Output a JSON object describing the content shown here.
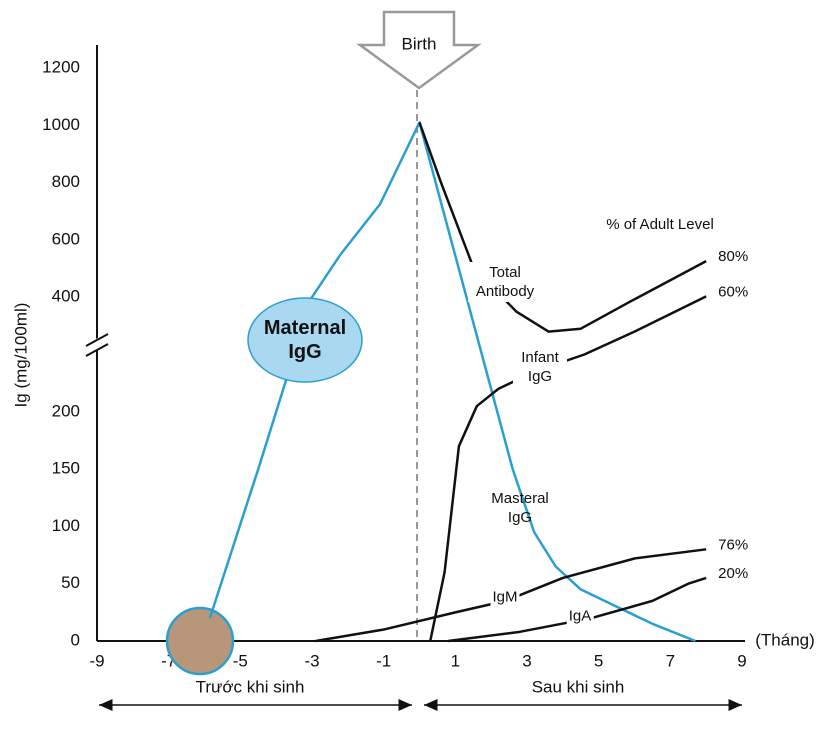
{
  "chart_data": {
    "type": "line",
    "ylabel": "Ig (mg/100ml)",
    "x_unit": "(Tháng)",
    "xlim": [
      -9,
      9
    ],
    "xticks": [
      -9,
      -7,
      -5,
      -3,
      -1,
      1,
      3,
      5,
      7,
      9
    ],
    "ylim": [
      0,
      1200
    ],
    "yticks": [
      0,
      50,
      100,
      150,
      200,
      400,
      600,
      800,
      1000,
      1200
    ],
    "event": "Birth",
    "periods": [
      "Trước khi sinh",
      "Sau khi sinh"
    ],
    "adult_level_title": "% of Adult Level",
    "series": [
      {
        "name": "Maternal IgG",
        "color": "#2a9fd0",
        "x": [
          -5.85,
          -4.5,
          -3,
          -2.2,
          -1.1,
          0,
          2.6,
          3.2,
          3.8,
          4.5,
          5.5,
          6.5,
          7.7
        ],
        "values": [
          20,
          150,
          400,
          550,
          725,
          1010,
          150,
          95,
          65,
          45,
          30,
          15,
          0
        ]
      },
      {
        "name": "Total Antibody",
        "color": "#111111",
        "adult_level": "80%",
        "x": [
          0,
          0.6,
          1.5,
          2.7,
          3.6,
          4.5,
          5.9,
          8
        ],
        "values": [
          1010,
          800,
          505,
          375,
          340,
          345,
          393,
          526
        ]
      },
      {
        "name": "Infant IgG",
        "color": "#111111",
        "adult_level": "60%",
        "x": [
          0.3,
          0.7,
          1.1,
          1.6,
          2.2,
          3.2,
          4.6,
          6,
          8
        ],
        "values": [
          0,
          60,
          170,
          210,
          240,
          270,
          300,
          340,
          403
        ]
      },
      {
        "name": "IgM",
        "color": "#111111",
        "adult_level": "76%",
        "x": [
          -2.9,
          -1,
          1,
          2.4,
          4,
          6,
          8
        ],
        "values": [
          0,
          10,
          25,
          35,
          55,
          72,
          80
        ]
      },
      {
        "name": "IgA",
        "color": "#111111",
        "adult_level": "20%",
        "x": [
          0.8,
          2.8,
          4.8,
          6.5,
          7.5,
          8
        ],
        "values": [
          0,
          8,
          20,
          35,
          50,
          55
        ]
      }
    ],
    "annotations": [
      "Masteral IgG"
    ]
  }
}
